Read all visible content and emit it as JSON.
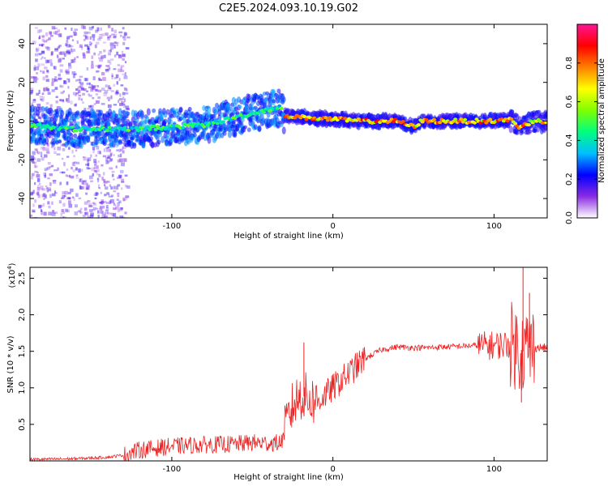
{
  "figure": {
    "title": "C2E5.2024.093.10.19.G02"
  },
  "chart_data": [
    {
      "type": "heatmap",
      "name": "spectrogram",
      "xlabel": "Height of straight line (km)",
      "ylabel": "Frequency (Hz)",
      "xlim": [
        -188,
        133
      ],
      "ylim": [
        -50,
        50
      ],
      "xticks": [
        -100,
        0,
        100
      ],
      "yticks": [
        -40,
        -20,
        0,
        20,
        40
      ],
      "colorbar": {
        "label": "Normalized spectral amplitude",
        "range": [
          0.0,
          1.0
        ],
        "ticks": [
          0.0,
          0.2,
          0.4,
          0.6,
          0.8
        ],
        "tick_labels": [
          "0.0",
          "0.2",
          "0.4",
          "0.6",
          "0.8"
        ],
        "colormap": [
          "#ffffff",
          "#8a2be2",
          "#0000ff",
          "#00bfff",
          "#00ff7f",
          "#7fff00",
          "#ffff00",
          "#ff7f00",
          "#ff0000",
          "#ff1493"
        ]
      },
      "ridge": [
        {
          "x": -188,
          "y": -2
        },
        {
          "x": -160,
          "y": -4
        },
        {
          "x": -140,
          "y": -4
        },
        {
          "x": -120,
          "y": -4
        },
        {
          "x": -100,
          "y": -3
        },
        {
          "x": -80,
          "y": -2
        },
        {
          "x": -60,
          "y": 2
        },
        {
          "x": -50,
          "y": 4
        },
        {
          "x": -40,
          "y": 6
        },
        {
          "x": -33,
          "y": 7
        },
        {
          "x": -30,
          "y": 3
        },
        {
          "x": -20,
          "y": 2
        },
        {
          "x": 0,
          "y": 1
        },
        {
          "x": 20,
          "y": 0
        },
        {
          "x": 40,
          "y": 0
        },
        {
          "x": 50,
          "y": -3
        },
        {
          "x": 55,
          "y": 0
        },
        {
          "x": 80,
          "y": 0
        },
        {
          "x": 100,
          "y": 0
        },
        {
          "x": 110,
          "y": 1
        },
        {
          "x": 115,
          "y": -3
        },
        {
          "x": 125,
          "y": 0
        },
        {
          "x": 133,
          "y": 0
        }
      ]
    },
    {
      "type": "line",
      "name": "snr",
      "xlabel": "Height of straight line (km)",
      "ylabel": "SNR (10 * v/v)",
      "y_multiplier_label": "(x10",
      "y_multiplier_exp": "4",
      "y_multiplier_close": ")",
      "xlim": [
        -188,
        133
      ],
      "ylim": [
        0,
        2.65
      ],
      "xticks": [
        -100,
        0,
        100
      ],
      "yticks": [
        0.5,
        1.0,
        1.5,
        2.0,
        2.5
      ],
      "line_color": "#ee2222",
      "series": [
        {
          "x": [
            -188,
            -160,
            -140,
            -130,
            -120,
            -100,
            -80,
            -60,
            -50,
            -40,
            -32,
            -28,
            -25,
            -20,
            -15,
            -10,
            -5,
            0,
            10,
            20,
            30,
            40,
            50,
            60,
            70,
            80,
            90,
            100,
            110,
            115,
            118,
            122,
            125,
            133
          ],
          "y": [
            0.02,
            0.03,
            0.05,
            0.08,
            0.15,
            0.2,
            0.22,
            0.23,
            0.25,
            0.24,
            0.25,
            0.55,
            0.75,
            0.9,
            0.85,
            0.8,
            0.9,
            1.0,
            1.2,
            1.4,
            1.52,
            1.56,
            1.55,
            1.55,
            1.56,
            1.57,
            1.58,
            1.58,
            1.6,
            1.55,
            1.5,
            1.55,
            1.55,
            1.55
          ]
        }
      ],
      "noise": [
        {
          "x": [
            -188,
            -130
          ],
          "amp": 0.02
        },
        {
          "x": [
            -130,
            -30
          ],
          "amp": 0.12
        },
        {
          "x": [
            -30,
            -10
          ],
          "amp": 0.35
        },
        {
          "x": [
            -10,
            20
          ],
          "amp": 0.2
        },
        {
          "x": [
            20,
            90
          ],
          "amp": 0.04
        },
        {
          "x": [
            90,
            110
          ],
          "amp": 0.2
        },
        {
          "x": [
            110,
            125
          ],
          "amp": 0.6
        },
        {
          "x": [
            125,
            133
          ],
          "amp": 0.06
        }
      ],
      "spikes": [
        {
          "x": -18,
          "y": 1.62
        },
        {
          "x": 118,
          "y": 2.65
        },
        {
          "x": 117,
          "y": 0.8
        },
        {
          "x": 122,
          "y": 2.3
        }
      ]
    }
  ]
}
